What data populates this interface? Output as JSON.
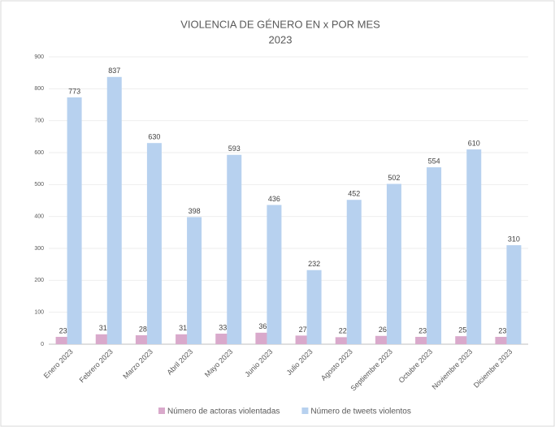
{
  "chart_data": {
    "type": "bar",
    "title": "VIOLENCIA DE GÉNERO EN x POR MES",
    "subtitle": "2023",
    "categories": [
      "Enero 2023",
      "Febrero 2023",
      "Marzo 2023",
      "Abril 2023",
      "Mayo 2023",
      "Junio 2023",
      "Julio 2023",
      "Agosto 2023",
      "Septiembre 2023",
      "Octubre 2023",
      "Noviembre 2023",
      "Diciembre 2023"
    ],
    "series": [
      {
        "name": "Número de actoras violentadas",
        "color": "#d9a9cb",
        "values": [
          23,
          31,
          28,
          31,
          33,
          36,
          27,
          22,
          26,
          23,
          25,
          23
        ]
      },
      {
        "name": "Número de tweets violentos",
        "color": "#b7d1ef",
        "values": [
          773,
          837,
          630,
          398,
          593,
          436,
          232,
          452,
          502,
          554,
          610,
          310
        ]
      }
    ],
    "ylim": [
      0,
      900
    ],
    "yticks": [
      0,
      100,
      200,
      300,
      400,
      500,
      600,
      700,
      800,
      900
    ],
    "grid": true,
    "legend": "bottom"
  }
}
